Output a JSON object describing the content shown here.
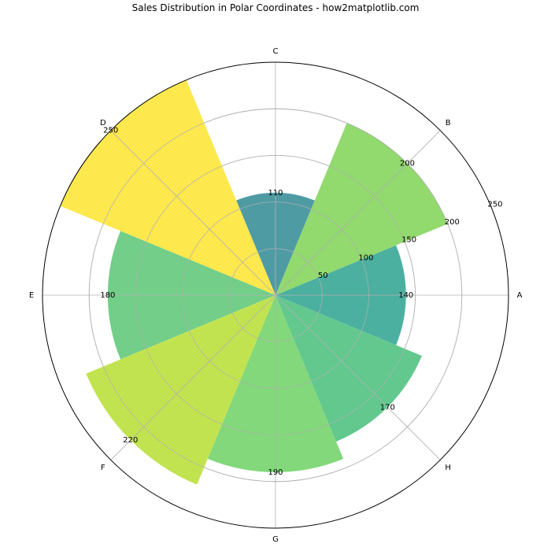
{
  "chart_data": {
    "type": "bar",
    "projection": "polar",
    "title": "Sales Distribution in Polar Coordinates - how2matplotlib.com",
    "categories": [
      "A",
      "B",
      "C",
      "D",
      "E",
      "F",
      "G",
      "H"
    ],
    "values": [
      140,
      200,
      110,
      250,
      180,
      220,
      190,
      170
    ],
    "colors": [
      "#4bb09f",
      "#92d96e",
      "#4f9ba4",
      "#fde84e",
      "#72ce88",
      "#c2e350",
      "#82d87a",
      "#62c88e"
    ],
    "radial_ticks": [
      50,
      100,
      150,
      200,
      250
    ],
    "radial_tick_labels": [
      "50",
      "100",
      "150",
      "200",
      "250"
    ],
    "rlim": [
      0,
      250
    ],
    "theta_direction": "counterclockwise",
    "theta_zero_location": "E",
    "grid": true,
    "legend": "none"
  }
}
